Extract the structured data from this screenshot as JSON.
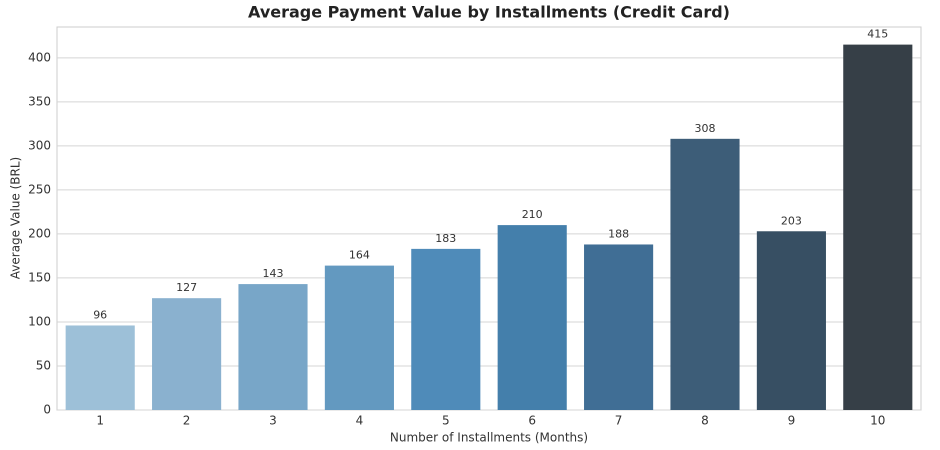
{
  "chart_data": {
    "type": "bar",
    "title": "Average Payment Value by Installments (Credit Card)",
    "x_label": "Number of Installments (Months)",
    "y_label": "Average Value (BRL)",
    "categories": [
      "1",
      "2",
      "3",
      "4",
      "5",
      "6",
      "7",
      "8",
      "9",
      "10"
    ],
    "values": [
      96,
      127,
      143,
      164,
      183,
      210,
      188,
      308,
      203,
      415
    ],
    "colors": [
      "#9dc0d8",
      "#8ab1cf",
      "#78a6c8",
      "#6399c0",
      "#4f8bb9",
      "#447fab",
      "#406e95",
      "#3d5d78",
      "#374f63",
      "#363f47"
    ],
    "ylim": [
      0,
      435
    ],
    "yticks": [
      0,
      50,
      100,
      150,
      200,
      250,
      300,
      350,
      400
    ],
    "grid": true
  }
}
